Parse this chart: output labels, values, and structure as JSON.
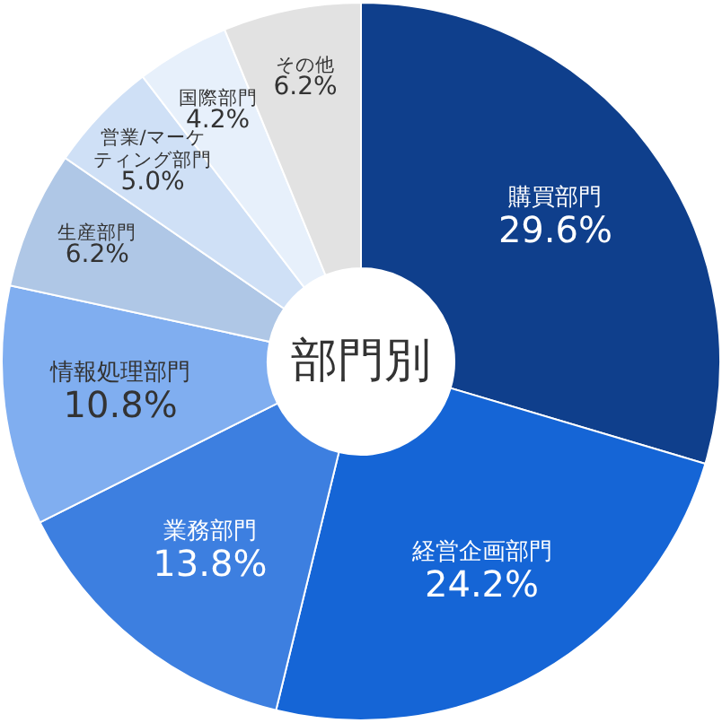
{
  "chart_data": {
    "type": "donut",
    "title": "部門別",
    "categories": [
      "購買部門",
      "経営企画部門",
      "業務部門",
      "情報処理部門",
      "生産部門",
      "営業/マーケティング部門",
      "国際部門",
      "その他"
    ],
    "values": [
      29.6,
      24.2,
      13.8,
      10.8,
      6.2,
      5.0,
      4.2,
      6.2
    ],
    "colors": [
      "#0f3f8c",
      "#1565d6",
      "#3d7fe0",
      "#80aef0",
      "#afc7e6",
      "#cfe0f6",
      "#e7f0fb",
      "#e2e2e2"
    ],
    "value_labels": [
      "29.6%",
      "24.2%",
      "13.8%",
      "10.8%",
      "6.2%",
      "5.0%",
      "4.2%",
      "6.2%"
    ]
  }
}
